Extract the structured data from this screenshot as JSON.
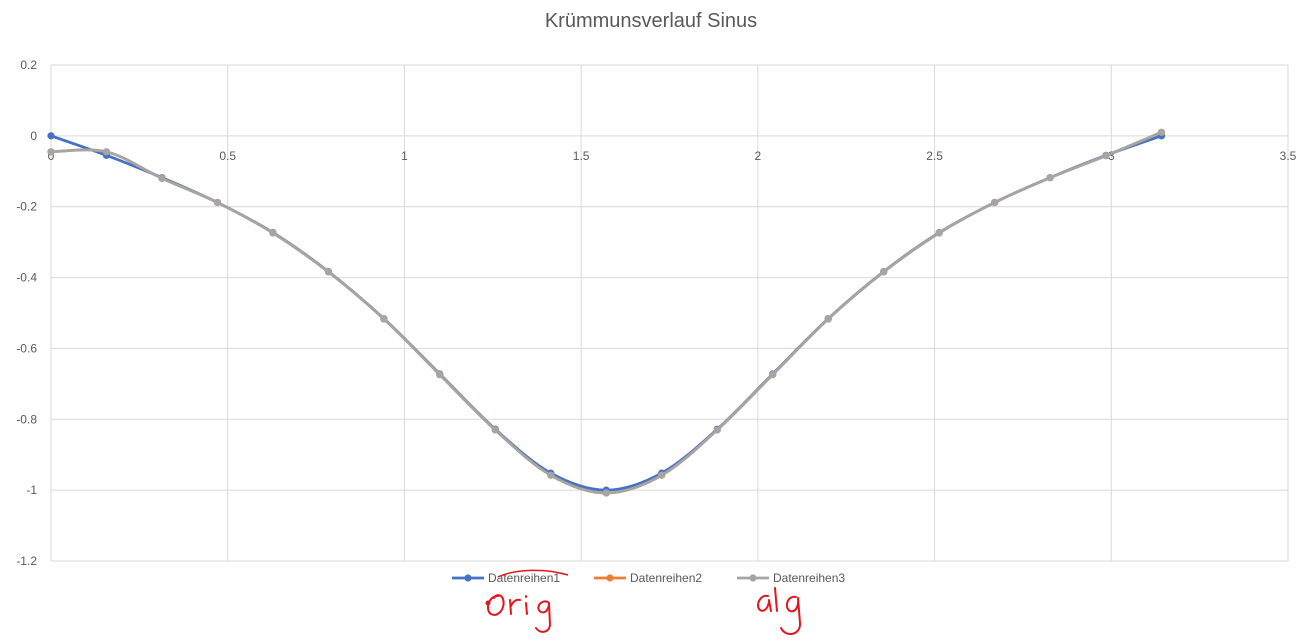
{
  "chart_data": {
    "type": "line",
    "title": "Krümmunsverlauf Sinus",
    "xlabel": "",
    "ylabel": "",
    "xlim": [
      0,
      3.5
    ],
    "ylim": [
      -1.2,
      0.2
    ],
    "x_ticks": [
      "0",
      "0.5",
      "1",
      "1.5",
      "2",
      "2.5",
      "3",
      "3.5"
    ],
    "y_ticks": [
      "0.2",
      "0",
      "-0.2",
      "-0.4",
      "-0.6",
      "-0.8",
      "-1",
      "-1.2"
    ],
    "grid": true,
    "legend_position": "bottom",
    "smooth": true,
    "series": [
      {
        "name": "Datenreihen1",
        "color": "#4472c4",
        "x": [
          0,
          0.157,
          0.314,
          0.471,
          0.628,
          0.785,
          0.942,
          1.1,
          1.257,
          1.414,
          1.571,
          1.728,
          1.885,
          2.042,
          2.199,
          2.356,
          2.513,
          2.67,
          2.827,
          2.985,
          3.142
        ],
        "y": [
          0,
          -0.055,
          -0.118,
          -0.188,
          -0.273,
          -0.383,
          -0.516,
          -0.672,
          -0.828,
          -0.952,
          -1.0,
          -0.952,
          -0.828,
          -0.672,
          -0.516,
          -0.383,
          -0.273,
          -0.188,
          -0.118,
          -0.055,
          0
        ]
      },
      {
        "name": "Datenreihen2",
        "color": "#ed7d31",
        "x": [
          0,
          0.157,
          0.314,
          0.471,
          0.628,
          0.785,
          0.942,
          1.1,
          1.257,
          1.414,
          1.571,
          1.728,
          1.885,
          2.042,
          2.199,
          2.356,
          2.513,
          2.67,
          2.827,
          2.985,
          3.142
        ],
        "y": [
          -0.045,
          -0.045,
          -0.12,
          -0.188,
          -0.274,
          -0.384,
          -0.517,
          -0.674,
          -0.83,
          -0.958,
          -1.008,
          -0.958,
          -0.83,
          -0.674,
          -0.517,
          -0.384,
          -0.274,
          -0.188,
          -0.118,
          -0.056,
          0.01
        ]
      },
      {
        "name": "Datenreihen3",
        "color": "#a5a5a5",
        "x": [
          0,
          0.157,
          0.314,
          0.471,
          0.628,
          0.785,
          0.942,
          1.1,
          1.257,
          1.414,
          1.571,
          1.728,
          1.885,
          2.042,
          2.199,
          2.356,
          2.513,
          2.67,
          2.827,
          2.985,
          3.142
        ],
        "y": [
          -0.045,
          -0.045,
          -0.12,
          -0.188,
          -0.274,
          -0.384,
          -0.517,
          -0.674,
          -0.83,
          -0.958,
          -1.008,
          -0.958,
          -0.83,
          -0.674,
          -0.517,
          -0.384,
          -0.274,
          -0.188,
          -0.118,
          -0.056,
          0.01
        ]
      }
    ]
  },
  "annotations": {
    "handwritten_1": "Orig",
    "handwritten_2": "alg",
    "color": "#e8141c"
  }
}
